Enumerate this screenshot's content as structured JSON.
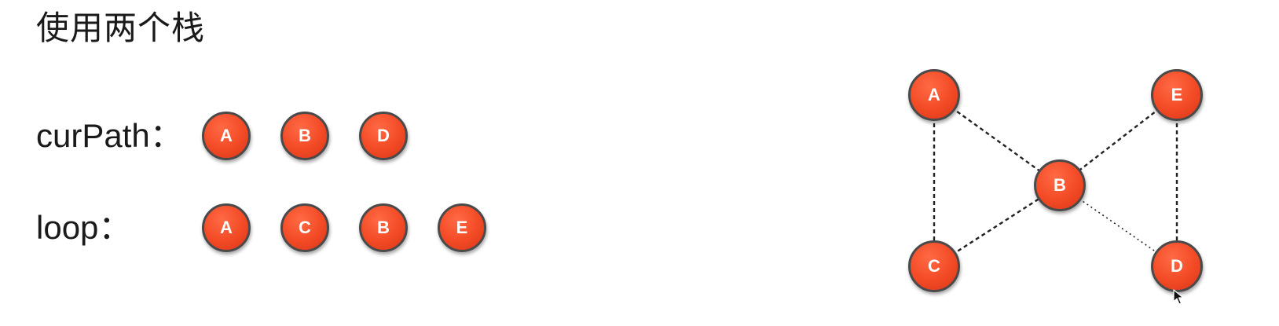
{
  "title": "使用两个栈",
  "stacks": {
    "curPath": {
      "label": "curPath：",
      "nodes": [
        "A",
        "B",
        "D"
      ]
    },
    "loop": {
      "label": "loop：",
      "nodes": [
        "A",
        "C",
        "B",
        "E"
      ]
    }
  },
  "graph": {
    "nodes": [
      {
        "id": "A",
        "label": "A"
      },
      {
        "id": "E",
        "label": "E"
      },
      {
        "id": "B",
        "label": "B"
      },
      {
        "id": "C",
        "label": "C"
      },
      {
        "id": "D",
        "label": "D"
      }
    ],
    "edges": [
      {
        "from": "A",
        "to": "B",
        "style": "dashed"
      },
      {
        "from": "A",
        "to": "C",
        "style": "dashed"
      },
      {
        "from": "E",
        "to": "B",
        "style": "dashed"
      },
      {
        "from": "E",
        "to": "D",
        "style": "dashed"
      },
      {
        "from": "C",
        "to": "B",
        "style": "dashed"
      },
      {
        "from": "B",
        "to": "D",
        "style": "dotted"
      }
    ]
  },
  "colors": {
    "node_fill": "#f24a25",
    "node_border": "#4a4a4a",
    "node_text": "#ffffff",
    "edge": "#222222"
  },
  "icons": {
    "cursor": "mouse-pointer-icon"
  }
}
